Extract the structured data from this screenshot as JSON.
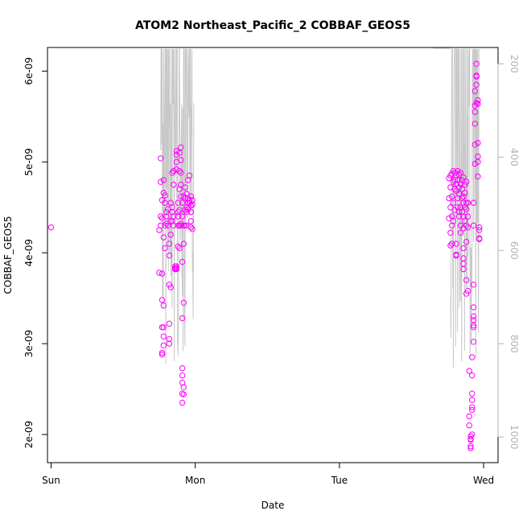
{
  "chart_data": {
    "type": "scatter",
    "title": "ATOM2 Northeast_Pacific_2 COBBAF_GEOS5",
    "xlabel": "Date",
    "ylabel": "COBBAF_GEOS5",
    "x_ticks": [
      "Sun",
      "Mon",
      "Tue",
      "Wed"
    ],
    "xlim_days": [
      -0.025,
      3.1
    ],
    "y_ticks": [
      "2e-09",
      "3e-09",
      "4e-09",
      "5e-09",
      "6e-09"
    ],
    "y_tick_values": [
      2e-09,
      3e-09,
      4e-09,
      5e-09,
      6e-09
    ],
    "ylim": [
      1.69e-09,
      6.26e-09
    ],
    "right_axis": {
      "label": "",
      "ticks": [
        "200",
        "400",
        "600",
        "800",
        "1000"
      ],
      "tick_values": [
        200,
        400,
        600,
        800,
        1000
      ],
      "ylim": [
        1055,
        165
      ],
      "reversed": true
    },
    "colors": {
      "points": "#ff00ff",
      "pressure_line": "#c8c8c8",
      "axis_right": "#b3b3b3"
    },
    "series": [
      {
        "values": [
          [
            0.0,
            4.28e-09
          ],
          [
            0.75,
            4.25e-09
          ],
          [
            0.75,
            3.78e-09
          ],
          [
            0.76,
            5.04e-09
          ],
          [
            0.76,
            4.78e-09
          ],
          [
            0.76,
            4.4e-09
          ],
          [
            0.76,
            4.3e-09
          ],
          [
            0.77,
            3.18e-09
          ],
          [
            0.77,
            3.48e-09
          ],
          [
            0.77,
            2.9e-09
          ],
          [
            0.77,
            2.88e-09
          ],
          [
            0.77,
            3.77e-09
          ],
          [
            0.77,
            4.58e-09
          ],
          [
            0.77,
            4.38e-09
          ],
          [
            0.78,
            3.18e-09
          ],
          [
            0.78,
            3.08e-09
          ],
          [
            0.78,
            2.98e-09
          ],
          [
            0.78,
            3.42e-09
          ],
          [
            0.78,
            4.17e-09
          ],
          [
            0.78,
            4.66e-09
          ],
          [
            0.78,
            4.8e-09
          ],
          [
            0.79,
            4.63e-09
          ],
          [
            0.79,
            4.55e-09
          ],
          [
            0.79,
            4.3e-09
          ],
          [
            0.79,
            4.05e-09
          ],
          [
            0.8,
            4.4e-09
          ],
          [
            0.8,
            4.32e-09
          ],
          [
            0.8,
            4.45e-09
          ],
          [
            0.81,
            4.3e-09
          ],
          [
            0.81,
            4.48e-09
          ],
          [
            0.82,
            3.97e-09
          ],
          [
            0.82,
            3.65e-09
          ],
          [
            0.82,
            3.22e-09
          ],
          [
            0.82,
            3.05e-09
          ],
          [
            0.82,
            3e-09
          ],
          [
            0.82,
            4.1e-09
          ],
          [
            0.83,
            4.2e-09
          ],
          [
            0.83,
            4.35e-09
          ],
          [
            0.83,
            4.55e-09
          ],
          [
            0.83,
            3.62e-09
          ],
          [
            0.84,
            4.45e-09
          ],
          [
            0.84,
            4.35e-09
          ],
          [
            0.84,
            4.5e-09
          ],
          [
            0.84,
            4.88e-09
          ],
          [
            0.85,
            4.9e-09
          ],
          [
            0.85,
            4.75e-09
          ],
          [
            0.85,
            4.4e-09
          ],
          [
            0.85,
            4.3e-09
          ],
          [
            0.86,
            3.83e-09
          ],
          [
            0.86,
            3.85e-09
          ],
          [
            0.86,
            3.82e-09
          ],
          [
            0.87,
            3.83e-09
          ],
          [
            0.87,
            3.82e-09
          ],
          [
            0.87,
            3.85e-09
          ],
          [
            0.87,
            5.12e-09
          ],
          [
            0.87,
            5.08e-09
          ],
          [
            0.87,
            5e-09
          ],
          [
            0.87,
            4.92e-09
          ],
          [
            0.88,
            4.3e-09
          ],
          [
            0.88,
            4.45e-09
          ],
          [
            0.88,
            4.4e-09
          ],
          [
            0.88,
            4.55e-09
          ],
          [
            0.88,
            4.07e-09
          ],
          [
            0.89,
            4.05e-09
          ],
          [
            0.89,
            4.3e-09
          ],
          [
            0.89,
            4.47e-09
          ],
          [
            0.89,
            5.1e-09
          ],
          [
            0.89,
            4.7e-09
          ],
          [
            0.89,
            4.9e-09
          ],
          [
            0.9,
            4.3e-09
          ],
          [
            0.9,
            4.32e-09
          ],
          [
            0.9,
            5.16e-09
          ],
          [
            0.9,
            5.02e-09
          ],
          [
            0.9,
            4.88e-09
          ],
          [
            0.9,
            4.62e-09
          ],
          [
            0.9,
            4.75e-09
          ],
          [
            0.91,
            4.55e-09
          ],
          [
            0.91,
            4.4e-09
          ],
          [
            0.91,
            3.9e-09
          ],
          [
            0.91,
            3.28e-09
          ],
          [
            0.91,
            2.73e-09
          ],
          [
            0.91,
            2.65e-09
          ],
          [
            0.91,
            2.57e-09
          ],
          [
            0.91,
            2.45e-09
          ],
          [
            0.91,
            2.35e-09
          ],
          [
            0.92,
            2.52e-09
          ],
          [
            0.92,
            2.44e-09
          ],
          [
            0.92,
            4.3e-09
          ],
          [
            0.92,
            4.1e-09
          ],
          [
            0.92,
            3.45e-09
          ],
          [
            0.92,
            4.62e-09
          ],
          [
            0.93,
            4.6e-09
          ],
          [
            0.93,
            4.72e-09
          ],
          [
            0.93,
            4.47e-09
          ],
          [
            0.93,
            4.3e-09
          ],
          [
            0.94,
            4.5e-09
          ],
          [
            0.94,
            4.65e-09
          ],
          [
            0.94,
            4.45e-09
          ],
          [
            0.94,
            4.3e-09
          ],
          [
            0.95,
            4.55e-09
          ],
          [
            0.95,
            4.6e-09
          ],
          [
            0.95,
            4.48e-09
          ],
          [
            0.95,
            4.8e-09
          ],
          [
            0.96,
            4.58e-09
          ],
          [
            0.96,
            4.55e-09
          ],
          [
            0.96,
            4.85e-09
          ],
          [
            0.97,
            4.28e-09
          ],
          [
            0.97,
            4.35e-09
          ],
          [
            0.97,
            4.52e-09
          ],
          [
            0.97,
            4.45e-09
          ],
          [
            0.97,
            4.62e-09
          ],
          [
            0.98,
            4.53e-09
          ],
          [
            0.98,
            4.58e-09
          ],
          [
            0.98,
            4.26e-09
          ],
          [
            2.76,
            4.38e-09
          ],
          [
            2.76,
            4.6e-09
          ],
          [
            2.76,
            4.82e-09
          ],
          [
            2.77,
            4.85e-09
          ],
          [
            2.77,
            4.72e-09
          ],
          [
            2.77,
            4.5e-09
          ],
          [
            2.77,
            4.22e-09
          ],
          [
            2.77,
            4.08e-09
          ],
          [
            2.78,
            4.1e-09
          ],
          [
            2.78,
            4.3e-09
          ],
          [
            2.78,
            4.87e-09
          ],
          [
            2.78,
            4.62e-09
          ],
          [
            2.78,
            4.4e-09
          ],
          [
            2.79,
            4.9e-09
          ],
          [
            2.79,
            4.78e-09
          ],
          [
            2.79,
            4.55e-09
          ],
          [
            2.79,
            4.35e-09
          ],
          [
            2.8,
            4.8e-09
          ],
          [
            2.8,
            4.88e-09
          ],
          [
            2.8,
            4.7e-09
          ],
          [
            2.8,
            4.47e-09
          ],
          [
            2.81,
            4.85e-09
          ],
          [
            2.81,
            4.76e-09
          ],
          [
            2.81,
            4.68e-09
          ],
          [
            2.81,
            3.97e-09
          ],
          [
            2.81,
            3.98e-09
          ],
          [
            2.81,
            4.1e-09
          ],
          [
            2.82,
            4.9e-09
          ],
          [
            2.82,
            4.8e-09
          ],
          [
            2.82,
            4.6e-09
          ],
          [
            2.82,
            4.5e-09
          ],
          [
            2.83,
            4.86e-09
          ],
          [
            2.83,
            4.72e-09
          ],
          [
            2.83,
            4.65e-09
          ],
          [
            2.83,
            4.4e-09
          ],
          [
            2.83,
            4.45e-09
          ],
          [
            2.84,
            4.88e-09
          ],
          [
            2.84,
            4.76e-09
          ],
          [
            2.84,
            4.5e-09
          ],
          [
            2.84,
            4.3e-09
          ],
          [
            2.84,
            4.22e-09
          ],
          [
            2.85,
            4.8e-09
          ],
          [
            2.85,
            4.7e-09
          ],
          [
            2.85,
            4.6e-09
          ],
          [
            2.85,
            4.45e-09
          ],
          [
            2.86,
            4.83e-09
          ],
          [
            2.86,
            4.62e-09
          ],
          [
            2.86,
            4.55e-09
          ],
          [
            2.86,
            4.4e-09
          ],
          [
            2.86,
            4.27e-09
          ],
          [
            2.86,
            4.05e-09
          ],
          [
            2.86,
            3.94e-09
          ],
          [
            2.86,
            3.88e-09
          ],
          [
            2.86,
            3.82e-09
          ],
          [
            2.87,
            4.75e-09
          ],
          [
            2.87,
            4.66e-09
          ],
          [
            2.87,
            4.5e-09
          ],
          [
            2.87,
            4.35e-09
          ],
          [
            2.88,
            4.78e-09
          ],
          [
            2.88,
            4.55e-09
          ],
          [
            2.88,
            4.48e-09
          ],
          [
            2.88,
            4.3e-09
          ],
          [
            2.88,
            4.12e-09
          ],
          [
            2.88,
            3.7e-09
          ],
          [
            2.88,
            3.55e-09
          ],
          [
            2.89,
            4.55e-09
          ],
          [
            2.89,
            4.4e-09
          ],
          [
            2.89,
            4.28e-09
          ],
          [
            2.89,
            3.58e-09
          ],
          [
            2.9,
            2.7e-09
          ],
          [
            2.9,
            2.2e-09
          ],
          [
            2.9,
            2.1e-09
          ],
          [
            2.91,
            1.98e-09
          ],
          [
            2.91,
            1.95e-09
          ],
          [
            2.91,
            1.87e-09
          ],
          [
            2.91,
            1.85e-09
          ],
          [
            2.91,
            1.94e-09
          ],
          [
            2.92,
            2e-09
          ],
          [
            2.92,
            2.3e-09
          ],
          [
            2.92,
            2.27e-09
          ],
          [
            2.92,
            2.45e-09
          ],
          [
            2.92,
            2.38e-09
          ],
          [
            2.92,
            2.85e-09
          ],
          [
            2.92,
            2.65e-09
          ],
          [
            2.93,
            3.02e-09
          ],
          [
            2.93,
            3.18e-09
          ],
          [
            2.93,
            3.3e-09
          ],
          [
            2.93,
            3.4e-09
          ],
          [
            2.93,
            3.65e-09
          ],
          [
            2.93,
            3.2e-09
          ],
          [
            2.93,
            3.26e-09
          ],
          [
            2.93,
            4.3e-09
          ],
          [
            2.93,
            4.55e-09
          ],
          [
            2.94,
            4.98e-09
          ],
          [
            2.94,
            5.19e-09
          ],
          [
            2.94,
            5.42e-09
          ],
          [
            2.94,
            5.55e-09
          ],
          [
            2.94,
            5.62e-09
          ],
          [
            2.94,
            5.78e-09
          ],
          [
            2.95,
            5.85e-09
          ],
          [
            2.95,
            5.94e-09
          ],
          [
            2.95,
            5.95e-09
          ],
          [
            2.95,
            6.08e-09
          ],
          [
            2.95,
            5.65e-09
          ],
          [
            2.96,
            5.68e-09
          ],
          [
            2.96,
            5.64e-09
          ],
          [
            2.96,
            5.21e-09
          ],
          [
            2.96,
            5.06e-09
          ],
          [
            2.96,
            5e-09
          ],
          [
            2.96,
            4.84e-09
          ],
          [
            2.97,
            4.28e-09
          ],
          [
            2.97,
            4.25e-09
          ],
          [
            2.97,
            4.16e-09
          ],
          [
            2.97,
            4.15e-09
          ]
        ]
      }
    ]
  }
}
